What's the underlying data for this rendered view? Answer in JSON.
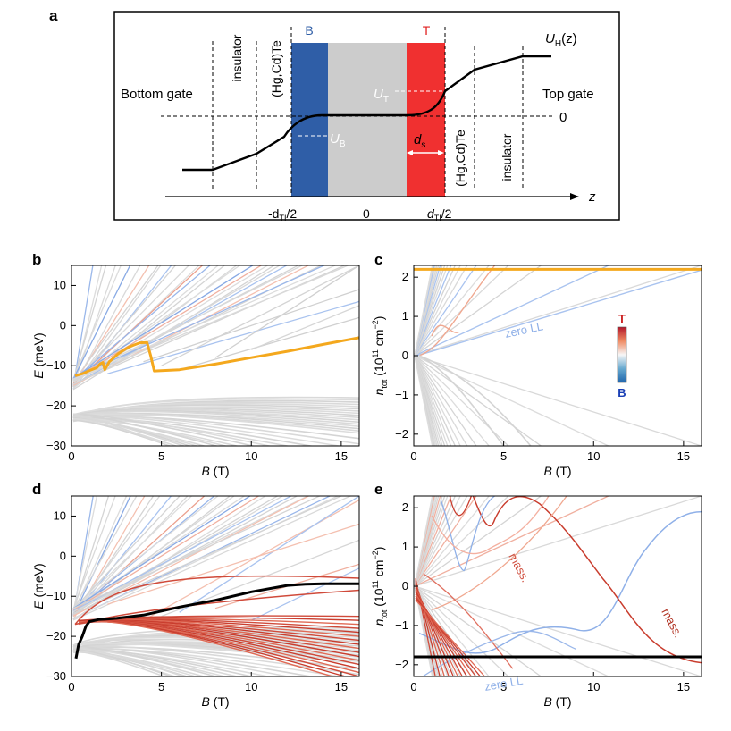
{
  "panel_labels": {
    "a": "a",
    "b": "b",
    "c": "c",
    "d": "d",
    "e": "e"
  },
  "schematic": {
    "layer_top_B": "B",
    "layer_top_T": "T",
    "potential_label": "U",
    "potential_sub": "H",
    "potential_arg": "(z)",
    "bottom_gate": "Bottom gate",
    "top_gate": "Top gate",
    "insulator_left": "insulator",
    "insulator_right": "insulator",
    "hgcdte_left": "(Hg,Cd)Te",
    "hgcdte_right": "(Hg,Cd)Te",
    "zero_label": "0",
    "z_label": "z",
    "u_t": "U",
    "u_t_sub": "T",
    "u_b": "U",
    "u_b_sub": "B",
    "d_s": "d",
    "d_s_sub": "s",
    "x_minus": "-d",
    "x_minus_sub": "TI",
    "x_minus_tail": "/2",
    "x_zero": "0",
    "x_plus": "d",
    "x_plus_sub": "TI",
    "x_plus_tail": "/2",
    "colors": {
      "B": "#2f5ea7",
      "gap": "#cccccc",
      "T": "#f03030"
    }
  },
  "axes": {
    "E_label": "E",
    "E_unit": " (meV)",
    "B_label": "B",
    "B_unit": " (T)",
    "n_label": "n",
    "n_sub": "tot",
    "n_unit_open": " (10",
    "n_unit_exp1": "11",
    "n_unit_mid": " cm",
    "n_unit_exp2": "−2",
    "n_unit_close": ")"
  },
  "annotations": {
    "zero_ll_c": "zero LL",
    "zero_ll_e": "zero LL",
    "mass_1": "mass.",
    "mass_2": "mass."
  },
  "colorbar": {
    "top": "T",
    "bottom": "B",
    "top_color": "#cc2222",
    "bottom_color": "#1a3fb5"
  },
  "chart_data": [
    {
      "panel": "b",
      "type": "line",
      "xlabel": "B (T)",
      "ylabel": "E (meV)",
      "xlim": [
        0,
        16
      ],
      "ylim": [
        -30,
        15
      ],
      "xticks": [
        "0",
        "5",
        "10",
        "15"
      ],
      "yticks": [
        "−30",
        "−20",
        "−10",
        "0",
        "10"
      ],
      "highlight_color": "#f4a81d",
      "highlight": {
        "x": [
          0.2,
          0.6,
          1.0,
          1.4,
          1.6,
          1.75,
          1.85,
          2.1,
          2.6,
          3.2,
          3.8,
          4.2,
          4.4,
          4.6,
          6,
          8,
          10,
          12,
          14,
          16
        ],
        "y": [
          -12.5,
          -12.0,
          -11.2,
          -10.5,
          -9.5,
          -9.2,
          -11.0,
          -9.0,
          -7.0,
          -5.3,
          -4.3,
          -4.2,
          -7.5,
          -11.3,
          -11.0,
          -9.6,
          -8.0,
          -6.4,
          -4.7,
          -3.0
        ]
      }
    },
    {
      "panel": "c",
      "type": "line",
      "xlabel": "B (T)",
      "ylabel": "n_tot (10^11 cm^-2)",
      "xlim": [
        0,
        16
      ],
      "ylim": [
        -2.3,
        2.3
      ],
      "xticks": [
        "0",
        "5",
        "10",
        "15"
      ],
      "yticks": [
        "−2",
        "−1",
        "0",
        "1",
        "2"
      ],
      "highlight_color": "#f4a81d",
      "highlight": {
        "x": [
          0,
          16
        ],
        "y": [
          2.2,
          2.2
        ]
      }
    },
    {
      "panel": "d",
      "type": "line",
      "xlabel": "B (T)",
      "ylabel": "E (meV)",
      "xlim": [
        0,
        16
      ],
      "ylim": [
        -30,
        15
      ],
      "xticks": [
        "0",
        "5",
        "10",
        "15"
      ],
      "yticks": [
        "−30",
        "−20",
        "−10",
        "0",
        "10"
      ],
      "highlight_color": "#000000",
      "highlight": {
        "x": [
          0.25,
          0.4,
          0.6,
          0.8,
          1.0,
          1.5,
          2.5,
          4,
          6,
          8,
          10,
          12,
          13,
          14,
          16
        ],
        "y": [
          -25.5,
          -22,
          -20,
          -17.5,
          -16.3,
          -15.8,
          -15.5,
          -14.7,
          -12.7,
          -11.0,
          -8.9,
          -7.3,
          -7.0,
          -6.9,
          -6.9
        ]
      }
    },
    {
      "panel": "e",
      "type": "line",
      "xlabel": "B (T)",
      "ylabel": "n_tot (10^11 cm^-2)",
      "xlim": [
        0,
        16
      ],
      "ylim": [
        -2.3,
        2.3
      ],
      "xticks": [
        "0",
        "5",
        "10",
        "15"
      ],
      "yticks": [
        "−2",
        "−1",
        "0",
        "1",
        "2"
      ],
      "highlight_color": "#000000",
      "highlight": {
        "x": [
          0,
          16
        ],
        "y": [
          -1.8,
          -1.8
        ]
      }
    }
  ]
}
